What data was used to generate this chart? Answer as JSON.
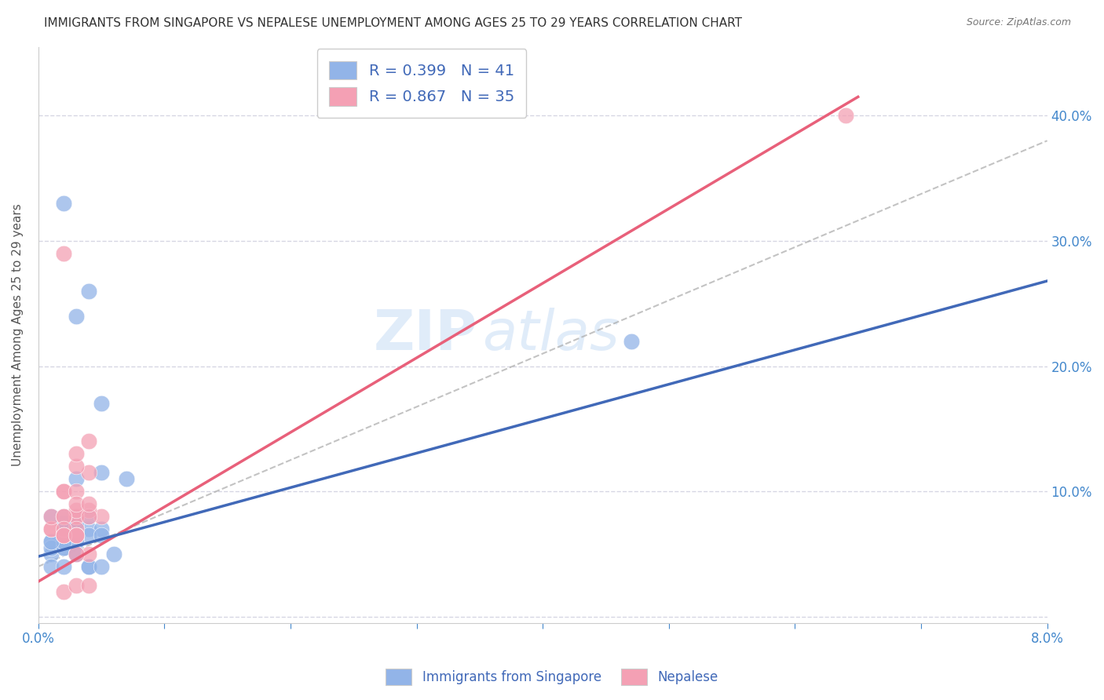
{
  "title": "IMMIGRANTS FROM SINGAPORE VS NEPALESE UNEMPLOYMENT AMONG AGES 25 TO 29 YEARS CORRELATION CHART",
  "source": "Source: ZipAtlas.com",
  "ylabel": "Unemployment Among Ages 25 to 29 years",
  "x_tick_positions": [
    0.0,
    0.01,
    0.02,
    0.03,
    0.04,
    0.05,
    0.06,
    0.07,
    0.08
  ],
  "x_tick_labels": [
    "0.0%",
    "",
    "",
    "",
    "",
    "",
    "",
    "",
    "8.0%"
  ],
  "y_tick_positions": [
    0.0,
    0.1,
    0.2,
    0.3,
    0.4
  ],
  "y_tick_labels": [
    "",
    "10.0%",
    "20.0%",
    "30.0%",
    "40.0%"
  ],
  "xlim": [
    0.0,
    0.08
  ],
  "ylim": [
    -0.005,
    0.455
  ],
  "blue_color": "#92b4e8",
  "pink_color": "#f4a0b4",
  "blue_line_color": "#4169b8",
  "pink_line_color": "#e8607a",
  "dashed_line_color": "#aaaaaa",
  "legend_text_color": "#4169b8",
  "watermark": "ZIPatlas",
  "legend_r_blue": "R = 0.399",
  "legend_n_blue": "N = 41",
  "legend_r_pink": "R = 0.867",
  "legend_n_pink": "N = 35",
  "legend_label_blue": "Immigrants from Singapore",
  "legend_label_pink": "Nepalese",
  "blue_scatter_x": [
    0.002,
    0.004,
    0.003,
    0.004,
    0.005,
    0.001,
    0.002,
    0.003,
    0.005,
    0.007,
    0.001,
    0.002,
    0.003,
    0.002,
    0.003,
    0.004,
    0.005,
    0.003,
    0.002,
    0.004,
    0.001,
    0.002,
    0.003,
    0.003,
    0.004,
    0.005,
    0.003,
    0.002,
    0.001,
    0.002,
    0.003,
    0.001,
    0.002,
    0.004,
    0.005,
    0.006,
    0.003,
    0.002,
    0.001,
    0.047,
    0.003
  ],
  "blue_scatter_y": [
    0.33,
    0.26,
    0.24,
    0.04,
    0.17,
    0.05,
    0.075,
    0.11,
    0.115,
    0.11,
    0.08,
    0.08,
    0.08,
    0.065,
    0.065,
    0.07,
    0.07,
    0.07,
    0.07,
    0.065,
    0.06,
    0.065,
    0.075,
    0.065,
    0.08,
    0.065,
    0.06,
    0.055,
    0.055,
    0.055,
    0.06,
    0.04,
    0.04,
    0.04,
    0.04,
    0.05,
    0.05,
    0.06,
    0.06,
    0.22,
    0.05
  ],
  "pink_scatter_x": [
    0.001,
    0.001,
    0.002,
    0.002,
    0.003,
    0.003,
    0.004,
    0.005,
    0.004,
    0.003,
    0.002,
    0.001,
    0.002,
    0.003,
    0.004,
    0.003,
    0.002,
    0.002,
    0.003,
    0.003,
    0.004,
    0.003,
    0.002,
    0.003,
    0.004,
    0.002,
    0.003,
    0.004,
    0.003,
    0.002,
    0.003,
    0.004,
    0.064,
    0.002,
    0.003
  ],
  "pink_scatter_y": [
    0.07,
    0.07,
    0.1,
    0.1,
    0.1,
    0.08,
    0.115,
    0.08,
    0.085,
    0.08,
    0.29,
    0.08,
    0.08,
    0.085,
    0.08,
    0.12,
    0.08,
    0.065,
    0.07,
    0.09,
    0.09,
    0.13,
    0.07,
    0.065,
    0.14,
    0.065,
    0.065,
    0.05,
    0.05,
    0.02,
    0.025,
    0.025,
    0.4,
    0.065,
    0.065
  ],
  "blue_line_x": [
    0.0,
    0.08
  ],
  "blue_line_y": [
    0.048,
    0.268
  ],
  "pink_line_x": [
    0.0,
    0.065
  ],
  "pink_line_y": [
    0.028,
    0.415
  ],
  "dashed_line_x": [
    0.0,
    0.08
  ],
  "dashed_line_y": [
    0.04,
    0.38
  ],
  "background_color": "#ffffff",
  "grid_color": "#ccccdd",
  "title_color": "#333333",
  "tick_color": "#4488cc"
}
